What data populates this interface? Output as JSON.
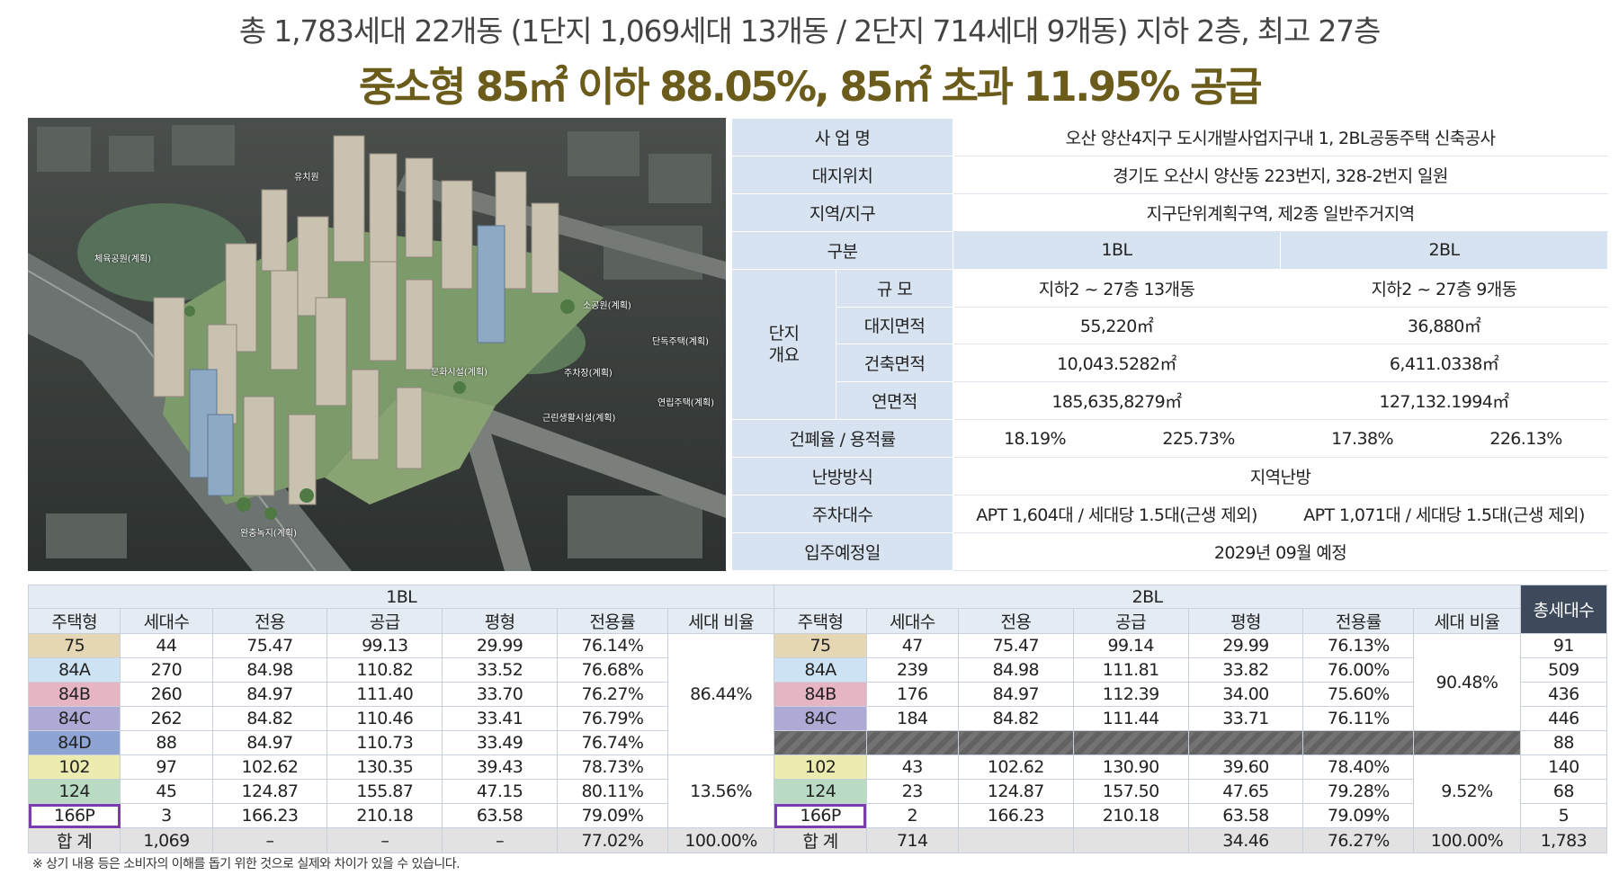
{
  "header": {
    "line1": "총 1,783세대 22개동 (1단지 1,069세대 13개동 / 2단지 714세대 9개동) 지하 2층, 최고 27층",
    "line2": "중소형 85㎡ 이하 88.05%, 85㎡ 초과 11.95% 공급"
  },
  "map_labels": {
    "kindergarten": "유치원",
    "sports_park": "체육공원(계획)",
    "small_park": "소공원(계획)",
    "detached": "단독주택(계획)",
    "parking": "주차장(계획)",
    "culture": "문화시설(계획)",
    "row_house": "연립주택(계획)",
    "neighborhood": "근린생활시설(계획)",
    "buffer_green": "완충녹지(계획)"
  },
  "info": {
    "project_label": "사 업 명",
    "project_value": "오산 양산4지구 도시개발사업지구내 1, 2BL공동주택 신축공사",
    "location_label": "대지위치",
    "location_value": "경기도 오산시 양산동 223번지, 328-2번지 일원",
    "zone_label": "지역/지구",
    "zone_value": "지구단위계획구역, 제2종 일반주거지역",
    "division_label": "구분",
    "bl1": "1BL",
    "bl2": "2BL",
    "overview_label": "단지\n개요",
    "scale_label": "규 모",
    "scale_1": "지하2 ~ 27층 13개동",
    "scale_2": "지하2 ~ 27층 9개동",
    "site_area_label": "대지면적",
    "site_area_1": "55,220㎡",
    "site_area_2": "36,880㎡",
    "building_area_label": "건축면적",
    "building_area_1": "10,043.5282㎡",
    "building_area_2": "6,411.0338㎡",
    "floor_area_label": "연면적",
    "floor_area_1": "185,635,8279㎡",
    "floor_area_2": "127,132.1994㎡",
    "ratio_label": "건폐율 / 용적률",
    "bcr_1": "18.19%",
    "far_1": "225.73%",
    "bcr_2": "17.38%",
    "far_2": "226.13%",
    "heating_label": "난방방식",
    "heating_value": "지역난방",
    "parking_label": "주차대수",
    "parking_1": "APT 1,604대 / 세대당 1.5대(근생 제외)",
    "parking_2": "APT 1,071대 / 세대당 1.5대(근생 제외)",
    "move_in_label": "입주예정일",
    "move_in_value": "2029년 09월 예정"
  },
  "units": {
    "bl1_title": "1BL",
    "bl2_title": "2BL",
    "total_header": "총세대수",
    "columns": [
      "주택형",
      "세대수",
      "전용",
      "공급",
      "평형",
      "전용률",
      "세대 비율"
    ],
    "bl1_ratio_small": "86.44%",
    "bl1_ratio_large": "13.56%",
    "bl2_ratio_small": "90.48%",
    "bl2_ratio_large": "9.52%",
    "rows": [
      {
        "type": "75",
        "a": [
          "44",
          "75.47",
          "99.13",
          "29.99",
          "76.14%"
        ],
        "b": [
          "47",
          "75.47",
          "99.14",
          "29.99",
          "76.13%"
        ],
        "total": "91"
      },
      {
        "type": "84A",
        "a": [
          "270",
          "84.98",
          "110.82",
          "33.52",
          "76.68%"
        ],
        "b": [
          "239",
          "84.98",
          "111.81",
          "33.82",
          "76.00%"
        ],
        "total": "509"
      },
      {
        "type": "84B",
        "a": [
          "260",
          "84.97",
          "111.40",
          "33.70",
          "76.27%"
        ],
        "b": [
          "176",
          "84.97",
          "112.39",
          "34.00",
          "75.60%"
        ],
        "total": "436"
      },
      {
        "type": "84C",
        "a": [
          "262",
          "84.82",
          "110.46",
          "33.41",
          "76.79%"
        ],
        "b": [
          "184",
          "84.82",
          "111.44",
          "33.71",
          "76.11%"
        ],
        "total": "446"
      },
      {
        "type": "84D",
        "a": [
          "88",
          "84.97",
          "110.73",
          "33.49",
          "76.74%"
        ],
        "total": "88"
      },
      {
        "type": "102",
        "a": [
          "97",
          "102.62",
          "130.35",
          "39.43",
          "78.73%"
        ],
        "b": [
          "43",
          "102.62",
          "130.90",
          "39.60",
          "78.40%"
        ],
        "total": "140"
      },
      {
        "type": "124",
        "a": [
          "45",
          "124.87",
          "155.87",
          "47.15",
          "80.11%"
        ],
        "b": [
          "23",
          "124.87",
          "157.50",
          "47.65",
          "79.28%"
        ],
        "total": "68"
      },
      {
        "type": "166P",
        "a": [
          "3",
          "166.23",
          "210.18",
          "63.58",
          "79.09%"
        ],
        "b": [
          "2",
          "166.23",
          "210.18",
          "63.58",
          "79.09%"
        ],
        "total": "5"
      }
    ],
    "sum": {
      "label": "합 계",
      "a": [
        "1,069",
        "–",
        "–",
        "–",
        "77.02%",
        "100.00%"
      ],
      "b": [
        "714",
        "",
        "",
        "34.46",
        "76.27%",
        "100.00%"
      ],
      "total": "1,783"
    }
  },
  "footnote": "※ 상기  내용 등은 소비자의 이해를 돕기 위한 것으로 실제와 차이가 있을 수 있습니다."
}
